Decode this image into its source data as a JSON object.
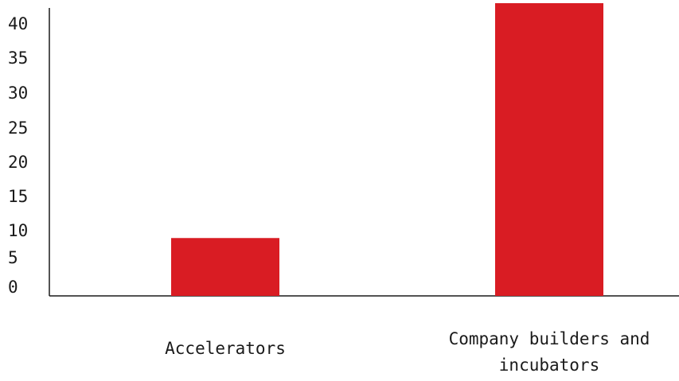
{
  "chart_data": {
    "type": "bar",
    "categories": [
      "Accelerators",
      "Company builders and incubators"
    ],
    "category_label_lines": [
      [
        "Accelerators"
      ],
      [
        "Company builders and",
        "incubators"
      ]
    ],
    "values": [
      8.5,
      43
    ],
    "title": "",
    "xlabel": "",
    "ylabel": "",
    "ylim": [
      0,
      42
    ],
    "y_ticks": [
      0,
      5,
      10,
      15,
      20,
      25,
      30,
      35,
      40
    ],
    "bar_color": "#d91c23",
    "grid": false,
    "legend": "none"
  }
}
